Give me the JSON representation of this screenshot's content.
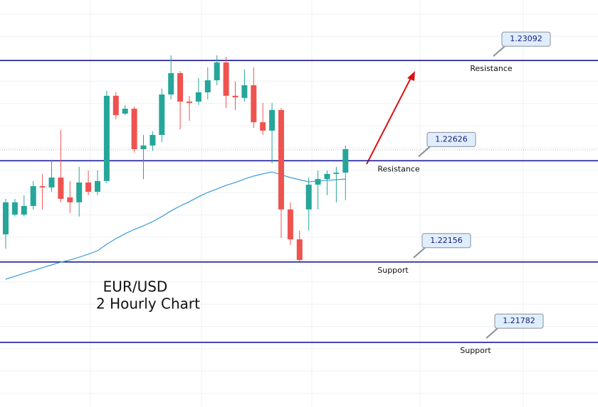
{
  "chart_data": {
    "type": "candlestick",
    "title": "EUR/USD",
    "subtitle": "2 Hourly Chart",
    "ylim": [
      1.21482,
      1.23373
    ],
    "up_color": "#26a69a",
    "down_color": "#ef5350",
    "ma_color": "#3d9ad8",
    "level_color": "#1b1b9c",
    "open": [
      1.22284,
      1.22376,
      1.22376,
      1.22416,
      1.22508,
      1.22502,
      1.22548,
      1.22456,
      1.22433,
      1.22525,
      1.22482,
      1.22532,
      1.22928,
      1.22845,
      1.22868,
      1.2268,
      1.22697,
      1.22746,
      1.22934,
      1.23033,
      1.22901,
      1.22901,
      1.22944,
      1.23,
      1.23083,
      1.22928,
      1.22918,
      1.22977,
      1.22805,
      1.22766,
      1.22862,
      1.224,
      1.22261,
      1.224,
      1.22515,
      1.22541,
      1.22565,
      1.22571
    ],
    "high": [
      1.22449,
      1.22449,
      1.22466,
      1.22532,
      1.22565,
      1.22631,
      1.22769,
      1.22532,
      1.22598,
      1.22581,
      1.22581,
      1.22951,
      1.22944,
      1.22885,
      1.22878,
      1.22746,
      1.22763,
      1.22961,
      1.23116,
      1.23043,
      1.22928,
      1.2301,
      1.2306,
      1.23116,
      1.23109,
      1.22994,
      1.2305,
      1.2306,
      1.22895,
      1.22895,
      1.22871,
      1.22433,
      1.22301,
      1.22548,
      1.22581,
      1.22581,
      1.22598,
      1.22697
    ],
    "low": [
      1.22218,
      1.22367,
      1.22367,
      1.224,
      1.224,
      1.22482,
      1.22433,
      1.22383,
      1.22367,
      1.22466,
      1.22466,
      1.22522,
      1.22819,
      1.22838,
      1.22664,
      1.22541,
      1.22673,
      1.22713,
      1.22911,
      1.22772,
      1.22812,
      1.22885,
      1.22911,
      1.22977,
      1.22871,
      1.22862,
      1.22901,
      1.22779,
      1.22746,
      1.22614,
      1.22268,
      1.22235,
      1.22159,
      1.22301,
      1.224,
      1.22466,
      1.22433,
      1.22442
    ],
    "close": [
      1.22433,
      1.22433,
      1.22416,
      1.22508,
      1.22502,
      1.22548,
      1.22449,
      1.22433,
      1.22525,
      1.22482,
      1.22532,
      1.22928,
      1.22838,
      1.22868,
      1.2268,
      1.22697,
      1.22746,
      1.22934,
      1.23033,
      1.22901,
      1.22895,
      1.22944,
      1.23,
      1.23083,
      1.22928,
      1.22921,
      1.22977,
      1.22805,
      1.22766,
      1.22862,
      1.224,
      1.22261,
      1.22165,
      1.22515,
      1.22541,
      1.22565,
      1.22571,
      1.2268
    ],
    "ma": [
      1.22076,
      1.22089,
      1.22103,
      1.22116,
      1.22129,
      1.22142,
      1.22155,
      1.22165,
      1.22178,
      1.22192,
      1.22208,
      1.22238,
      1.22264,
      1.22287,
      1.22307,
      1.22324,
      1.22343,
      1.22367,
      1.22393,
      1.22416,
      1.22436,
      1.22459,
      1.22479,
      1.22495,
      1.22512,
      1.22525,
      1.22541,
      1.22555,
      1.22565,
      1.22574,
      1.22561,
      1.22548,
      1.22538,
      1.22528,
      1.22532,
      1.22535,
      1.22538,
      1.22541
    ],
    "levels": [
      {
        "value": 1.23092,
        "name": "Resistance"
      },
      {
        "value": 1.22626,
        "name": "Resistance"
      },
      {
        "value": 1.22156,
        "name": "Support"
      },
      {
        "value": 1.21782,
        "name": "Support"
      }
    ]
  }
}
